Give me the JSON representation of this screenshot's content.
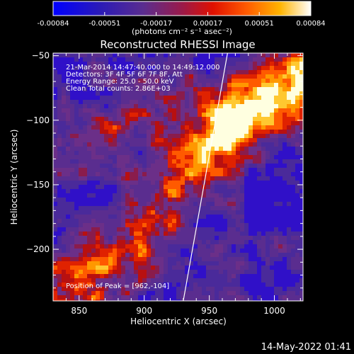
{
  "colorbar": {
    "ticks": [
      "-0.00084",
      "-0.00051",
      "-0.00017",
      "0.00017",
      "0.00051",
      "0.00084"
    ],
    "units": "(photons cm⁻² s⁻¹ asec⁻²)"
  },
  "chart_data": {
    "type": "heatmap",
    "title": "Reconstructed RHESSI Image",
    "xlabel": "Heliocentric X (arcsec)",
    "ylabel": "Heliocentric Y (arcsec)",
    "xlim": [
      830,
      1022
    ],
    "ylim": [
      -240,
      -48
    ],
    "xticks": [
      850,
      900,
      950,
      1000
    ],
    "yticks": [
      -50,
      -100,
      -150,
      -200
    ],
    "xtick_labels": [
      "850",
      "900",
      "950",
      "1000"
    ],
    "ytick_labels": [
      "−50",
      "−100",
      "−150",
      "−200"
    ],
    "colorscale": [
      "#0000ff",
      "#4b2a8e",
      "#5c2c8e",
      "#b01010",
      "#ff2a00",
      "#ff9a00",
      "#ffffff"
    ],
    "value_range": [
      -0.00084,
      0.00084
    ],
    "annotation_lines": [
      "21-Mar-2014 14:47:40.000 to 14:49:12.000",
      "Detectors: 3F 4F 5F 6F 7F 8F, Att",
      "Energy Range: 25.0 - 50.0 keV",
      "Clean    Total counts: 2.86E+03"
    ],
    "peak_label": "Position of Peak = [962,-104]",
    "peak": [
      962,
      -104
    ],
    "limb_line": [
      [
        930,
        -240
      ],
      [
        964,
        -48
      ]
    ]
  },
  "footer": {
    "timestamp": "14-May-2022 01:41"
  },
  "colors": {
    "background": "#000000",
    "foreground": "#ffffff",
    "purple": "#5a2d8f"
  }
}
